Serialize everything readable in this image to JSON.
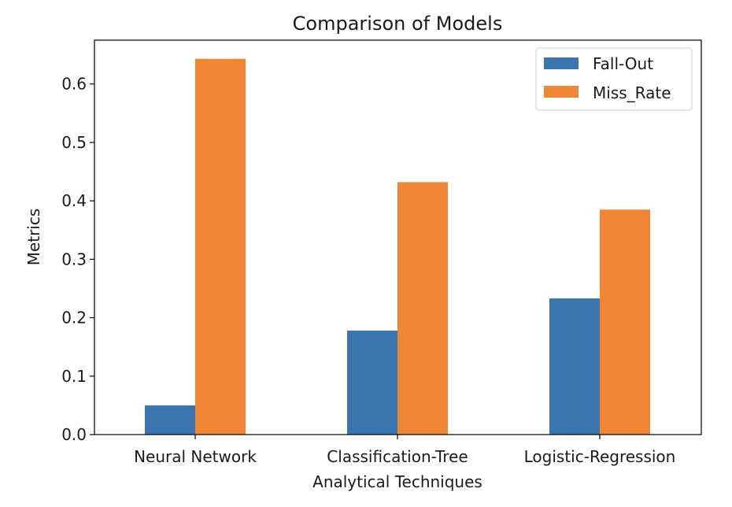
{
  "chart_data": {
    "type": "bar",
    "title": "Comparison of Models",
    "xlabel": "Analytical Techniques",
    "ylabel": "Metrics",
    "categories": [
      "Neural Network",
      "Classification-Tree",
      "Logistic-Regression"
    ],
    "series": [
      {
        "name": "Fall-Out",
        "color": "#3a75b0",
        "values": [
          0.05,
          0.178,
          0.233
        ]
      },
      {
        "name": "Miss_Rate",
        "color": "#ef8636",
        "values": [
          0.643,
          0.432,
          0.385
        ]
      }
    ],
    "ylim": [
      0,
      0.675
    ],
    "yticks": [
      0.0,
      0.1,
      0.2,
      0.3,
      0.4,
      0.5,
      0.6
    ],
    "ytick_labels": [
      "0.0",
      "0.1",
      "0.2",
      "0.3",
      "0.4",
      "0.5",
      "0.6"
    ],
    "grid": false,
    "legend_position": "top-right"
  }
}
